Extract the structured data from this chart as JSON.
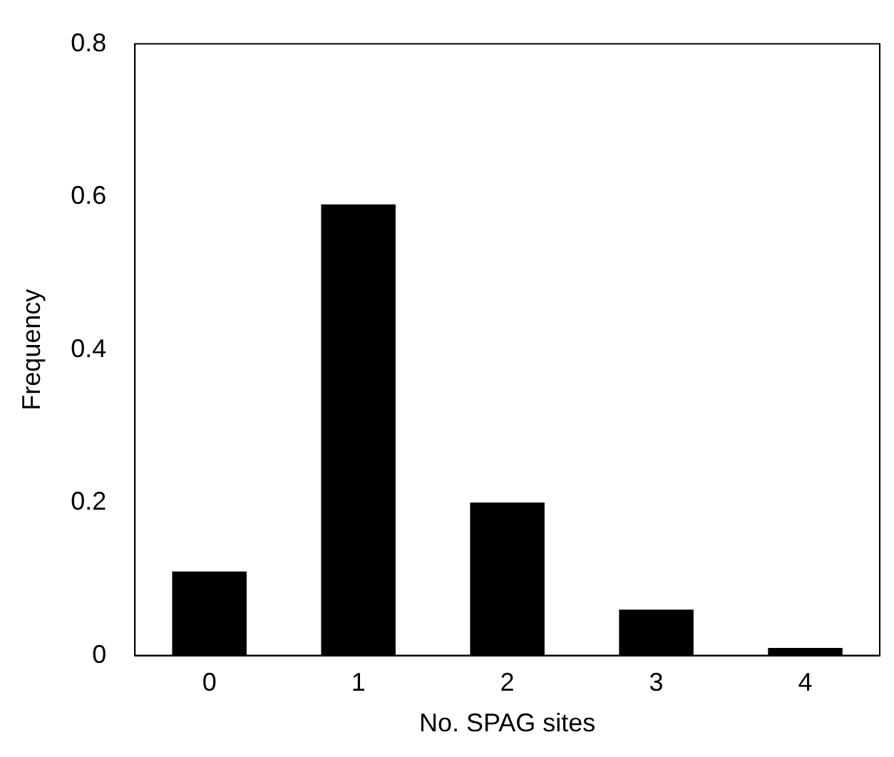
{
  "chart_data": {
    "type": "bar",
    "xlabel": "No. SPAG sites",
    "ylabel": "Frequency",
    "categories": [
      "0",
      "1",
      "2",
      "3",
      "4"
    ],
    "values": [
      0.11,
      0.59,
      0.2,
      0.06,
      0.01
    ],
    "color": "#000000",
    "ylim": [
      0,
      0.8
    ],
    "yticks": [
      0,
      0.2,
      0.4,
      0.6,
      0.8
    ],
    "grid": false,
    "legend": false
  }
}
